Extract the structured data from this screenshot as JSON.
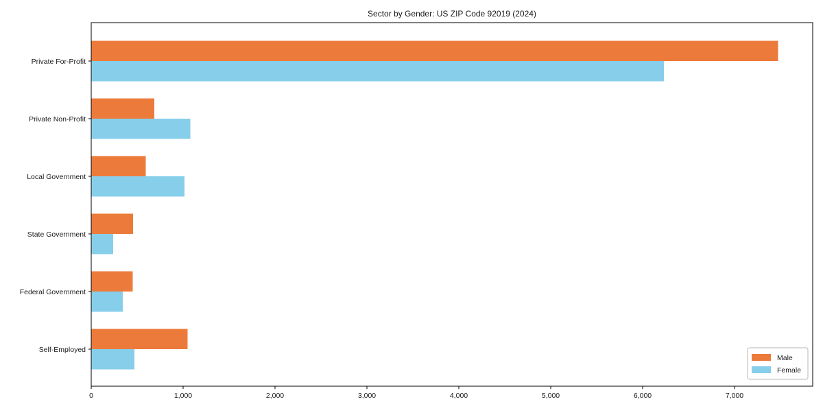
{
  "chart_data": {
    "type": "bar",
    "orientation": "horizontal",
    "title": "Sector by Gender: US ZIP Code 92019 (2024)",
    "categories": [
      "Private For-Profit",
      "Private Non-Profit",
      "Local Government",
      "State Government",
      "Federal Government",
      "Self-Employed"
    ],
    "series": [
      {
        "name": "Male",
        "color": "#EC7B3B",
        "values": [
          7475,
          685,
          595,
          455,
          450,
          1050
        ]
      },
      {
        "name": "Female",
        "color": "#87CEEB",
        "values": [
          6230,
          1080,
          1015,
          240,
          345,
          470
        ]
      }
    ],
    "xlabel": "",
    "ylabel": "",
    "xlim": [
      0,
      7850
    ],
    "xticks": [
      0,
      1000,
      2000,
      3000,
      4000,
      5000,
      6000,
      7000
    ],
    "xtick_labels": [
      "0",
      "1,000",
      "2,000",
      "3,000",
      "4,000",
      "5,000",
      "6,000",
      "7,000"
    ],
    "grid": false,
    "background": "#ffffff",
    "spine_color": "#000000",
    "legend": {
      "position": "lower-right",
      "entries": [
        "Male",
        "Female"
      ]
    }
  }
}
